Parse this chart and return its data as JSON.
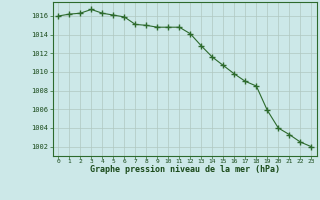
{
  "x": [
    0,
    1,
    2,
    3,
    4,
    5,
    6,
    7,
    8,
    9,
    10,
    11,
    12,
    13,
    14,
    15,
    16,
    17,
    18,
    19,
    20,
    21,
    22,
    23
  ],
  "y": [
    1016.0,
    1016.2,
    1016.3,
    1016.7,
    1016.3,
    1016.1,
    1015.9,
    1015.1,
    1015.0,
    1014.8,
    1014.8,
    1014.8,
    1014.1,
    1012.8,
    1011.6,
    1010.7,
    1009.8,
    1009.0,
    1008.5,
    1005.9,
    1004.0,
    1003.3,
    1002.5,
    1002.0
  ],
  "line_color": "#2d6a2d",
  "marker": "+",
  "marker_size": 4,
  "bg_color": "#cce8e8",
  "grid_color": "#b0c8c0",
  "xlabel": "Graphe pression niveau de la mer (hPa)",
  "xlabel_color": "#1a4a1a",
  "ylim": [
    1001.0,
    1017.5
  ],
  "yticks": [
    1002,
    1004,
    1006,
    1008,
    1010,
    1012,
    1014,
    1016
  ],
  "xlim": [
    -0.5,
    23.5
  ],
  "xticks": [
    0,
    1,
    2,
    3,
    4,
    5,
    6,
    7,
    8,
    9,
    10,
    11,
    12,
    13,
    14,
    15,
    16,
    17,
    18,
    19,
    20,
    21,
    22,
    23
  ],
  "tick_color": "#1a4a1a",
  "spine_color": "#2d6a2d",
  "grid_color_minor": "#c0d8d0"
}
